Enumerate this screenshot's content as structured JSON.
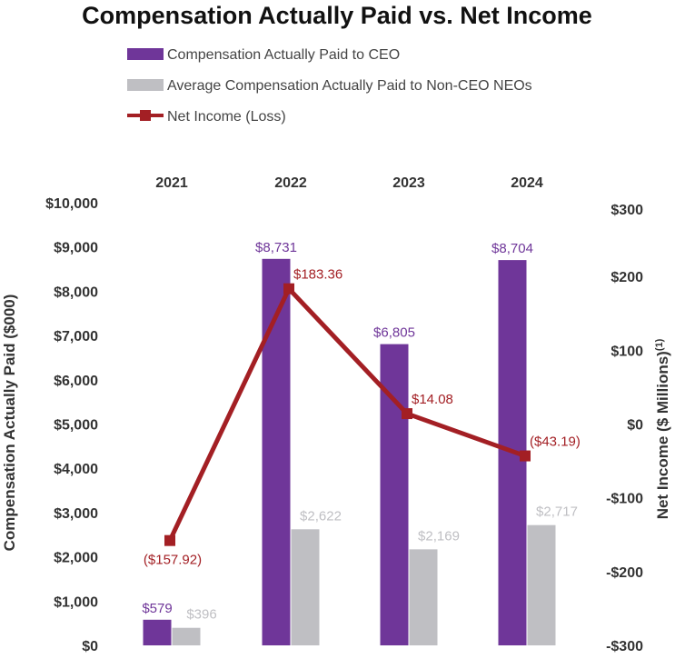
{
  "colors": {
    "ceo": "#6f3699",
    "neo": "#bfbfc3",
    "net_income": "#a31f24",
    "axis_text": "#333333"
  },
  "chart_data": {
    "type": "bar",
    "title": "Compensation Actually Paid vs. Net Income",
    "categories": [
      "2021",
      "2022",
      "2023",
      "2024"
    ],
    "series": [
      {
        "name": "Compensation Actually Paid to CEO",
        "type": "bar",
        "axis": "left",
        "values": [
          579,
          8731,
          6805,
          8704
        ],
        "labels": [
          "$579",
          "$8,731",
          "$6,805",
          "$8,704"
        ]
      },
      {
        "name": "Average Compensation Actually Paid to Non-CEO NEOs",
        "type": "bar",
        "axis": "left",
        "values": [
          396,
          2622,
          2169,
          2717
        ],
        "labels": [
          "$396",
          "$2,622",
          "$2,169",
          "$2,717"
        ]
      },
      {
        "name": "Net Income (Loss)",
        "type": "line",
        "axis": "right",
        "values": [
          -157.92,
          183.36,
          14.08,
          -43.19
        ],
        "labels": [
          "($157.92)",
          "$183.36",
          "$14.08",
          "($43.19)"
        ]
      }
    ],
    "ylabel_left": "Compensation Actually Paid ($000)",
    "ylabel_right": "Net Income ($ Millions)",
    "ylabel_right_footnote": "(1)",
    "ylim_left": [
      0,
      10000
    ],
    "ylim_right": [
      -300,
      300
    ],
    "left_ticks": [
      "$0",
      "$1,000",
      "$2,000",
      "$3,000",
      "$4,000",
      "$5,000",
      "$6,000",
      "$7,000",
      "$8,000",
      "$9,000",
      "$10,000"
    ],
    "right_ticks": [
      "-$300",
      "-$200",
      "-$100",
      "$0",
      "$100",
      "$200",
      "$300"
    ],
    "grid": false,
    "legend_position": "top"
  }
}
